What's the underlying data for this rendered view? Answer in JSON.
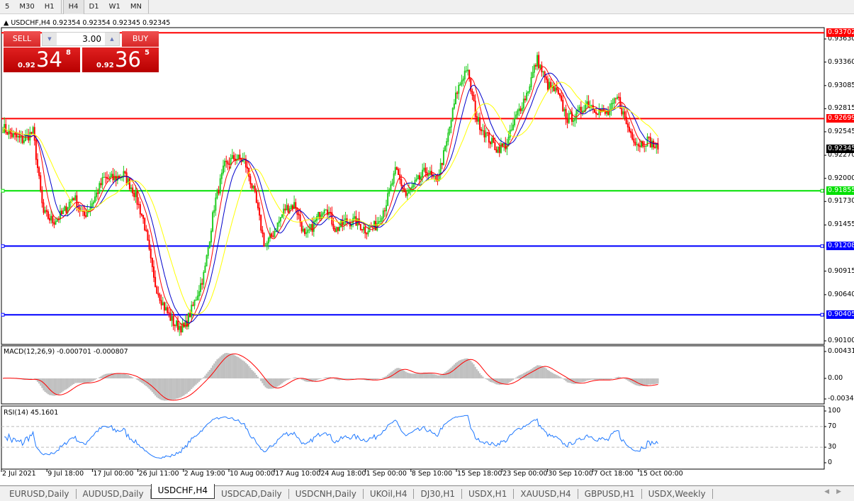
{
  "toolbar": {
    "timeframes": [
      "5",
      "M30",
      "H1",
      "H4",
      "D1",
      "W1",
      "MN"
    ],
    "active": "H4"
  },
  "chart": {
    "title": "USDCHF,H4  0.92354 0.92354 0.92345 0.92345",
    "symbol": "USDCHF",
    "timeframe": "H4",
    "trade_panel": {
      "sell_label": "SELL",
      "buy_label": "BUY",
      "lot": "3.00",
      "sell_small": "0.92",
      "sell_big": "34",
      "sell_pip": "8",
      "buy_small": "0.92",
      "buy_big": "36",
      "buy_pip": "5"
    },
    "price_axis": [
      "0.93630",
      "0.93360",
      "0.93085",
      "0.92815",
      "0.92545",
      "0.92270",
      "0.92000",
      "0.91730",
      "0.91455",
      "0.90915",
      "0.90640",
      "0.90100"
    ],
    "levels": [
      {
        "price": 0.93702,
        "label": "0.93702",
        "color": "#ff0000"
      },
      {
        "price": 0.92699,
        "label": "0.92699",
        "color": "#ff0000"
      },
      {
        "price": 0.91855,
        "label": "0.91855",
        "color": "#00e000"
      },
      {
        "price": 0.91208,
        "label": "0.91208",
        "color": "#0000ff"
      },
      {
        "price": 0.90405,
        "label": "0.90405",
        "color": "#0000ff"
      }
    ],
    "current_price": {
      "label": "0.92345",
      "price": 0.92345
    },
    "time_axis": [
      "2 Jul 2021",
      "9 Jul 18:00",
      "17 Jul 00:00",
      "26 Jul 11:00",
      "2 Aug 19:00",
      "10 Aug 00:00",
      "17 Aug 10:00",
      "24 Aug 18:00",
      "1 Sep 00:00",
      "8 Sep 10:00",
      "15 Sep 18:00",
      "23 Sep 00:00",
      "30 Sep 10:00",
      "7 Oct 18:00",
      "15 Oct 00:00"
    ],
    "colors": {
      "bull": "#22cc22",
      "bear": "#ff0000",
      "ma_fast": "#ff0000",
      "ma_mid": "#0000cc",
      "ma_slow": "#ffff00",
      "rsi": "#1e78ff",
      "macd_hist": "#c0c0c0",
      "macd_signal": "#ff0000"
    }
  },
  "macd": {
    "label": "MACD(12,26,9) -0.000701 -0.000807",
    "axis": [
      "0.00431",
      "0.00",
      "-0.00340"
    ]
  },
  "rsi": {
    "label": "RSI(14) 45.1601",
    "axis": [
      "100",
      "70",
      "30",
      "0"
    ],
    "levels": [
      70,
      30
    ]
  },
  "chart_data": {
    "type": "candlestick",
    "close_path": [
      0.926,
      0.925,
      0.9245,
      0.9255,
      0.916,
      0.915,
      0.916,
      0.918,
      0.9155,
      0.9175,
      0.92,
      0.92,
      0.9205,
      0.9185,
      0.915,
      0.908,
      0.905,
      0.903,
      0.9025,
      0.9055,
      0.909,
      0.917,
      0.9215,
      0.9225,
      0.922,
      0.918,
      0.912,
      0.914,
      0.9165,
      0.917,
      0.913,
      0.915,
      0.917,
      0.914,
      0.915,
      0.915,
      0.914,
      0.9145,
      0.917,
      0.921,
      0.918,
      0.9195,
      0.921,
      0.9195,
      0.924,
      0.93,
      0.933,
      0.927,
      0.925,
      0.9235,
      0.924,
      0.9275,
      0.93,
      0.934,
      0.931,
      0.93,
      0.927,
      0.9275,
      0.929,
      0.928,
      0.9275,
      0.9295,
      0.926,
      0.924,
      0.9245,
      0.92345
    ],
    "ylim": [
      0.901,
      0.937
    ]
  },
  "tabs": [
    "EURUSD,Daily",
    "AUDUSD,Daily",
    "USDCHF,H4",
    "USDCAD,Daily",
    "USDCNH,Daily",
    "UKOil,H4",
    "DJ30,H1",
    "USDX,H1",
    "XAUUSD,H4",
    "GBPUSD,H1",
    "USDX,Weekly"
  ],
  "active_tab": "USDCHF,H4"
}
